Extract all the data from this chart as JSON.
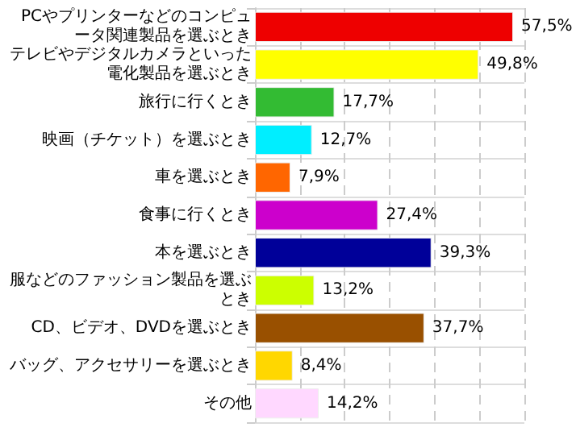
{
  "chart_data": {
    "type": "bar",
    "orientation": "horizontal",
    "categories": [
      "PCやプリンターなどのコンピュータ関連製品を選ぶとき",
      "テレビやデジタルカメラといった電化製品を選ぶとき",
      "旅行に行くとき",
      "映画（チケット）を選ぶとき",
      "車を選ぶとき",
      "食事に行くとき",
      "本を選ぶとき",
      "服などのファッション製品を選ぶとき",
      "CD、ビデオ、DVDを選ぶとき",
      "バッグ、アクセサリーを選ぶとき",
      "その他"
    ],
    "values": [
      57.5,
      49.8,
      17.7,
      12.7,
      7.9,
      27.4,
      39.3,
      13.2,
      37.7,
      8.4,
      14.2
    ],
    "colors": [
      "#ee0000",
      "#ffff00",
      "#33bb33",
      "#00eeff",
      "#ff6600",
      "#cc00cc",
      "#000099",
      "#ccff00",
      "#995000",
      "#ffd700",
      "#ffd8ff"
    ],
    "value_labels": [
      "57,5%",
      "49,8%",
      "17,7%",
      "12,7%",
      "7,9%",
      "27,4%",
      "39,3%",
      "13,2%",
      "37,7%",
      "8,4%",
      "14,2%"
    ],
    "xlim": [
      0,
      60
    ],
    "xticks": [
      {
        "value": 0,
        "label": null
      },
      {
        "value": 10,
        "label": null
      },
      {
        "value": 20,
        "label": null
      },
      {
        "value": 30,
        "label": null
      },
      {
        "value": 40,
        "label": null
      },
      {
        "value": 50,
        "label": null
      },
      {
        "value": 60,
        "label": null
      }
    ],
    "grid": true,
    "tick_labels": "y"
  }
}
